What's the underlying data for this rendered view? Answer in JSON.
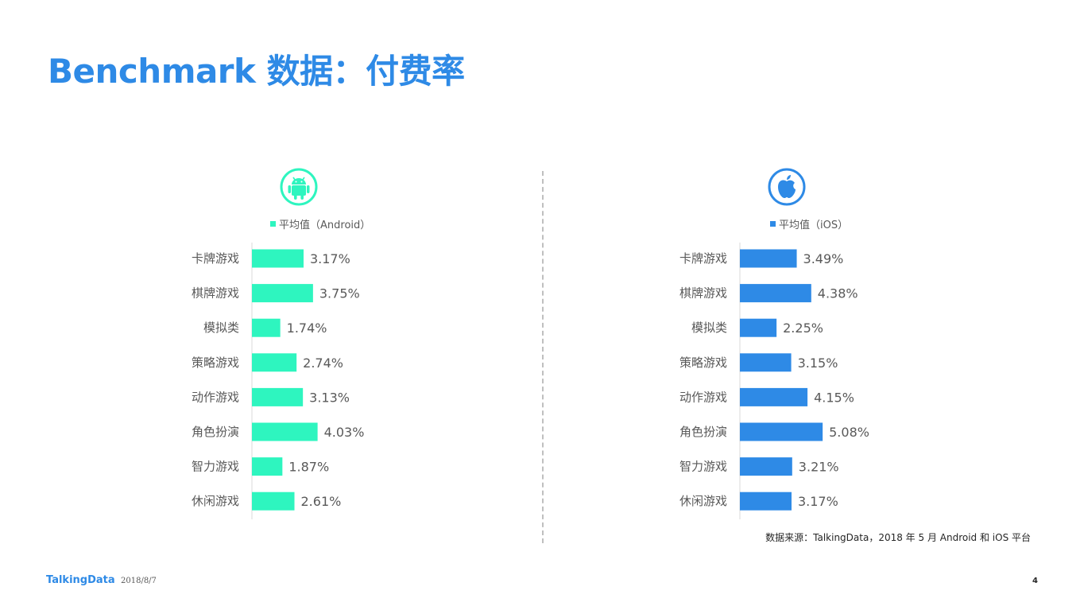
{
  "slide": {
    "title": "Benchmark 数据：付费率",
    "source": "数据来源：TalkingData，2018 年 5 月 Android 和 iOS 平台",
    "footer_logo": "TalkingData",
    "footer_date": "2018/8/7",
    "page_number": "4"
  },
  "panels": {
    "android": {
      "icon": "android-icon",
      "legend": "平均值（Android）",
      "color": "#2ef5bf"
    },
    "ios": {
      "icon": "apple-icon",
      "legend": "平均值（iOS）",
      "color": "#2e8ae6"
    }
  },
  "chart_data": [
    {
      "type": "bar",
      "orientation": "horizontal",
      "categories": [
        "卡牌游戏",
        "棋牌游戏",
        "模拟类",
        "策略游戏",
        "动作游戏",
        "角色扮演",
        "智力游戏",
        "休闲游戏"
      ],
      "series": [
        {
          "name": "平均值（Android）",
          "values": [
            3.17,
            3.75,
            1.74,
            2.74,
            3.13,
            4.03,
            1.87,
            2.61
          ]
        }
      ],
      "value_labels": [
        "3.17%",
        "3.75%",
        "1.74%",
        "2.74%",
        "3.13%",
        "4.03%",
        "1.87%",
        "2.61%"
      ],
      "unit": "%",
      "xlim": [
        0,
        10.5
      ],
      "grid": false,
      "legend_position": "top-center",
      "color": "#2ef5bf"
    },
    {
      "type": "bar",
      "orientation": "horizontal",
      "categories": [
        "卡牌游戏",
        "棋牌游戏",
        "模拟类",
        "策略游戏",
        "动作游戏",
        "角色扮演",
        "智力游戏",
        "休闲游戏"
      ],
      "series": [
        {
          "name": "平均值（iOS）",
          "values": [
            3.49,
            4.38,
            2.25,
            3.15,
            4.15,
            5.08,
            3.21,
            3.17
          ]
        }
      ],
      "value_labels": [
        "3.49%",
        "4.38%",
        "2.25%",
        "3.15%",
        "4.15%",
        "5.08%",
        "3.21%",
        "3.17%"
      ],
      "unit": "%",
      "xlim": [
        0,
        10.5
      ],
      "grid": false,
      "legend_position": "top-center",
      "color": "#2e8ae6"
    }
  ]
}
